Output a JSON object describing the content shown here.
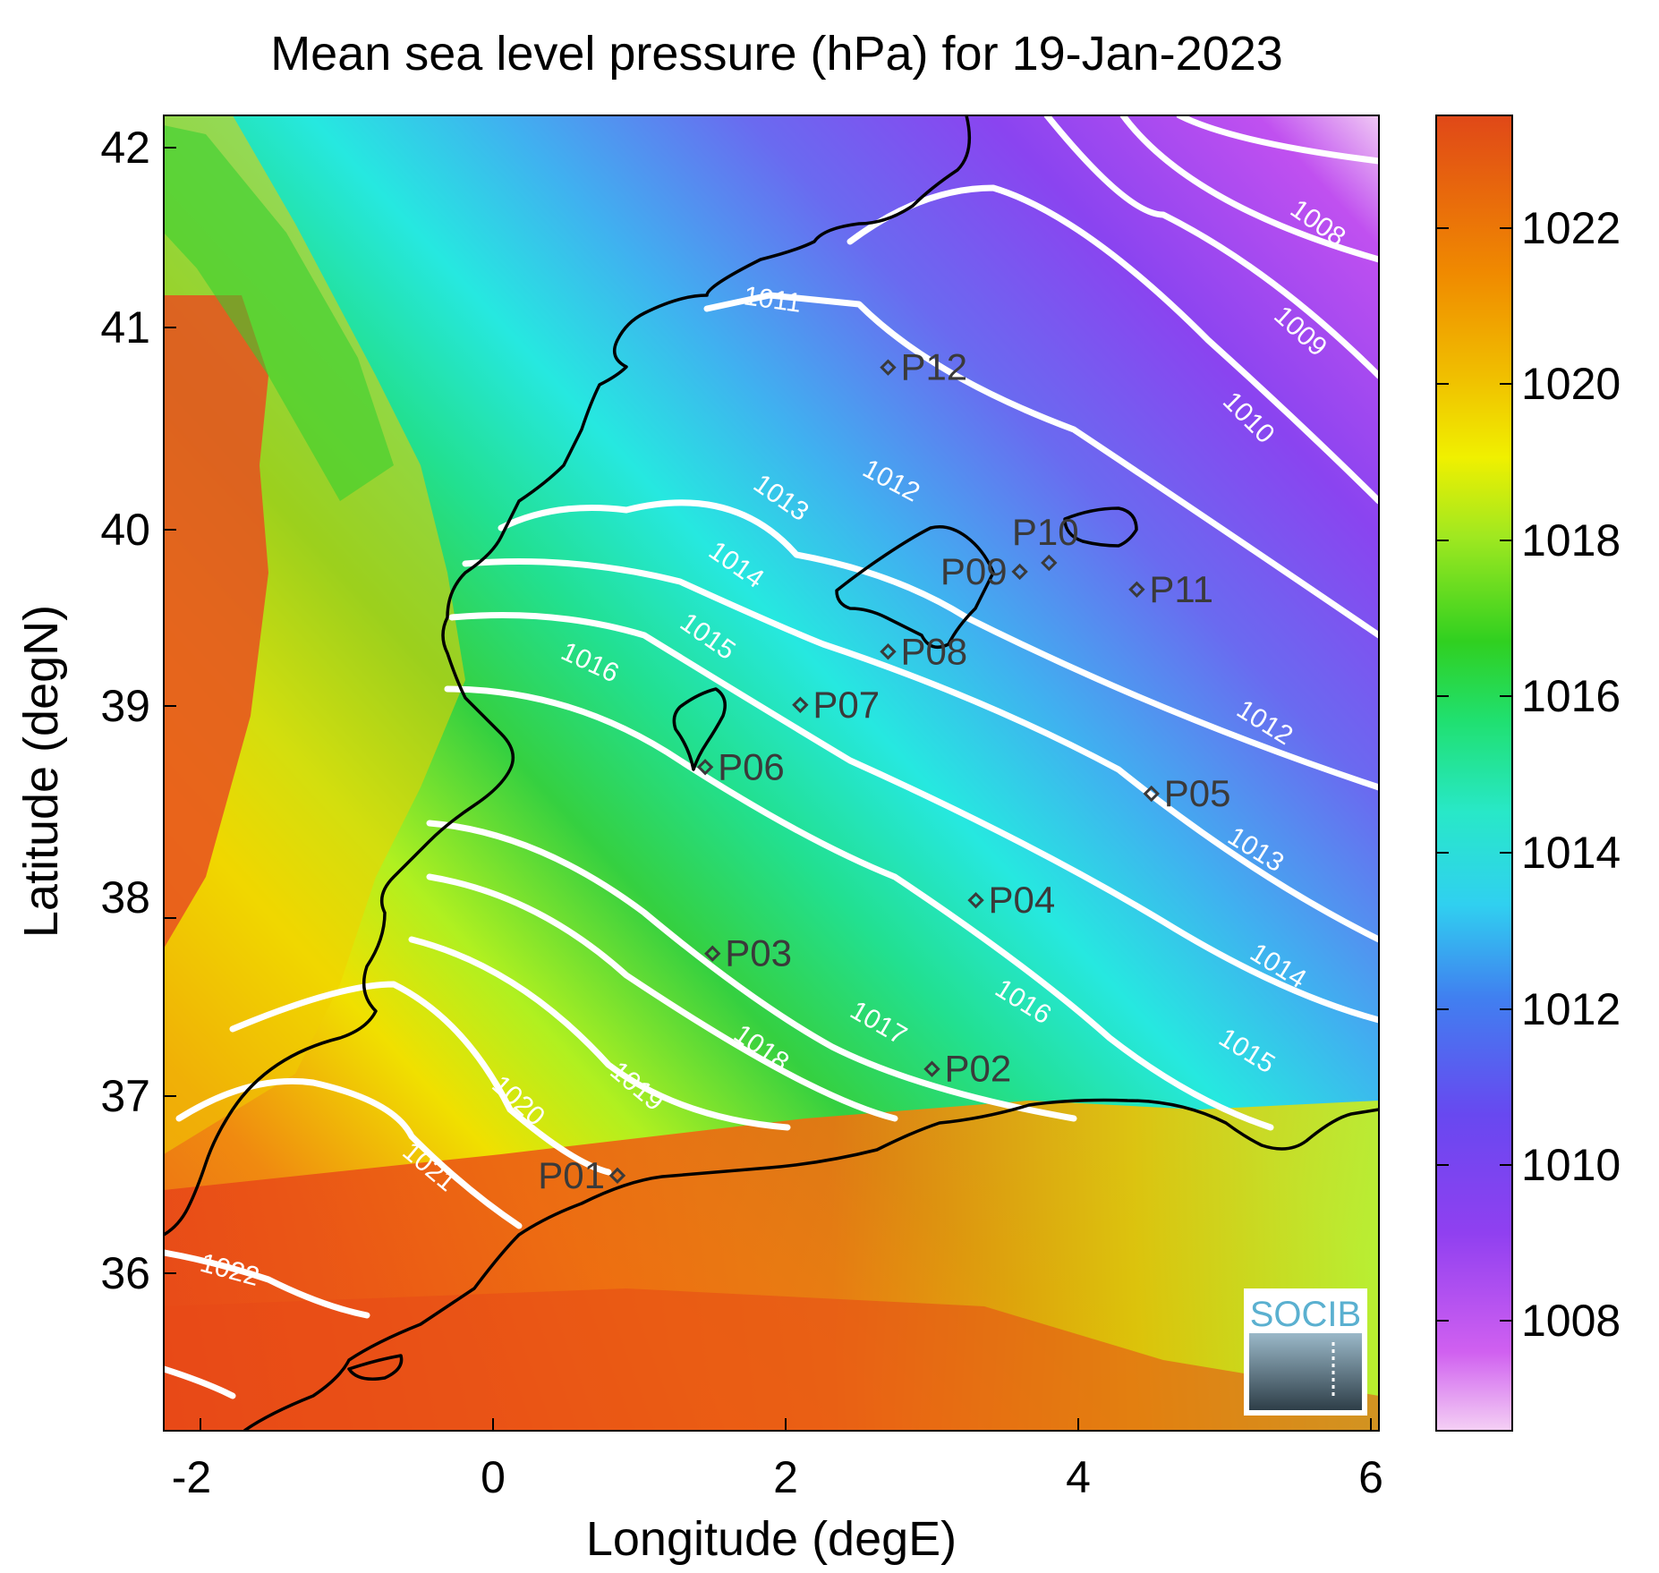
{
  "title": "Mean sea level pressure (hPa) for 19-Jan-2023",
  "axes": {
    "xlabel": "Longitude (degE)",
    "ylabel": "Latitude (degN)",
    "xlim": [
      -2.2,
      6.1
    ],
    "ylim": [
      35.2,
      42.2
    ],
    "xticks": [
      "-2",
      "0",
      "2",
      "4",
      "6"
    ],
    "yticks": [
      "36",
      "37",
      "38",
      "39",
      "40",
      "41",
      "42"
    ]
  },
  "colorbar": {
    "range": [
      1006.5,
      1023.5
    ],
    "ticks": [
      "1008",
      "1010",
      "1012",
      "1014",
      "1016",
      "1018",
      "1020",
      "1022"
    ],
    "colors": [
      "#f0b8f0",
      "#c050f0",
      "#7a3ff0",
      "#3b7ff0",
      "#2ee0f0",
      "#22e07a",
      "#2fd02a",
      "#b8f01a",
      "#f0f000",
      "#f0b000",
      "#f07000",
      "#e05020"
    ]
  },
  "contour_labels": [
    "1008",
    "1009",
    "1010",
    "1011",
    "1012",
    "1013",
    "1014",
    "1015",
    "1016",
    "1017",
    "1018",
    "1019",
    "1020",
    "1021",
    "1022"
  ],
  "points": [
    {
      "label": "P01",
      "lon": 0.85,
      "lat": 36.55
    },
    {
      "label": "P02",
      "lon": 3.0,
      "lat": 37.15
    },
    {
      "label": "P03",
      "lon": 1.5,
      "lat": 37.8
    },
    {
      "label": "P04",
      "lon": 3.3,
      "lat": 38.1
    },
    {
      "label": "P05",
      "lon": 4.5,
      "lat": 38.7
    },
    {
      "label": "P06",
      "lon": 1.45,
      "lat": 38.85
    },
    {
      "label": "P07",
      "lon": 2.1,
      "lat": 39.2
    },
    {
      "label": "P08",
      "lon": 2.7,
      "lat": 39.5
    },
    {
      "label": "P09",
      "lon": 3.6,
      "lat": 39.95
    },
    {
      "label": "P10",
      "lon": 3.8,
      "lat": 40.0
    },
    {
      "label": "P11",
      "lon": 4.4,
      "lat": 39.85
    },
    {
      "label": "P12",
      "lon": 2.7,
      "lat": 41.1
    }
  ],
  "logo_text": "SOCIB"
}
